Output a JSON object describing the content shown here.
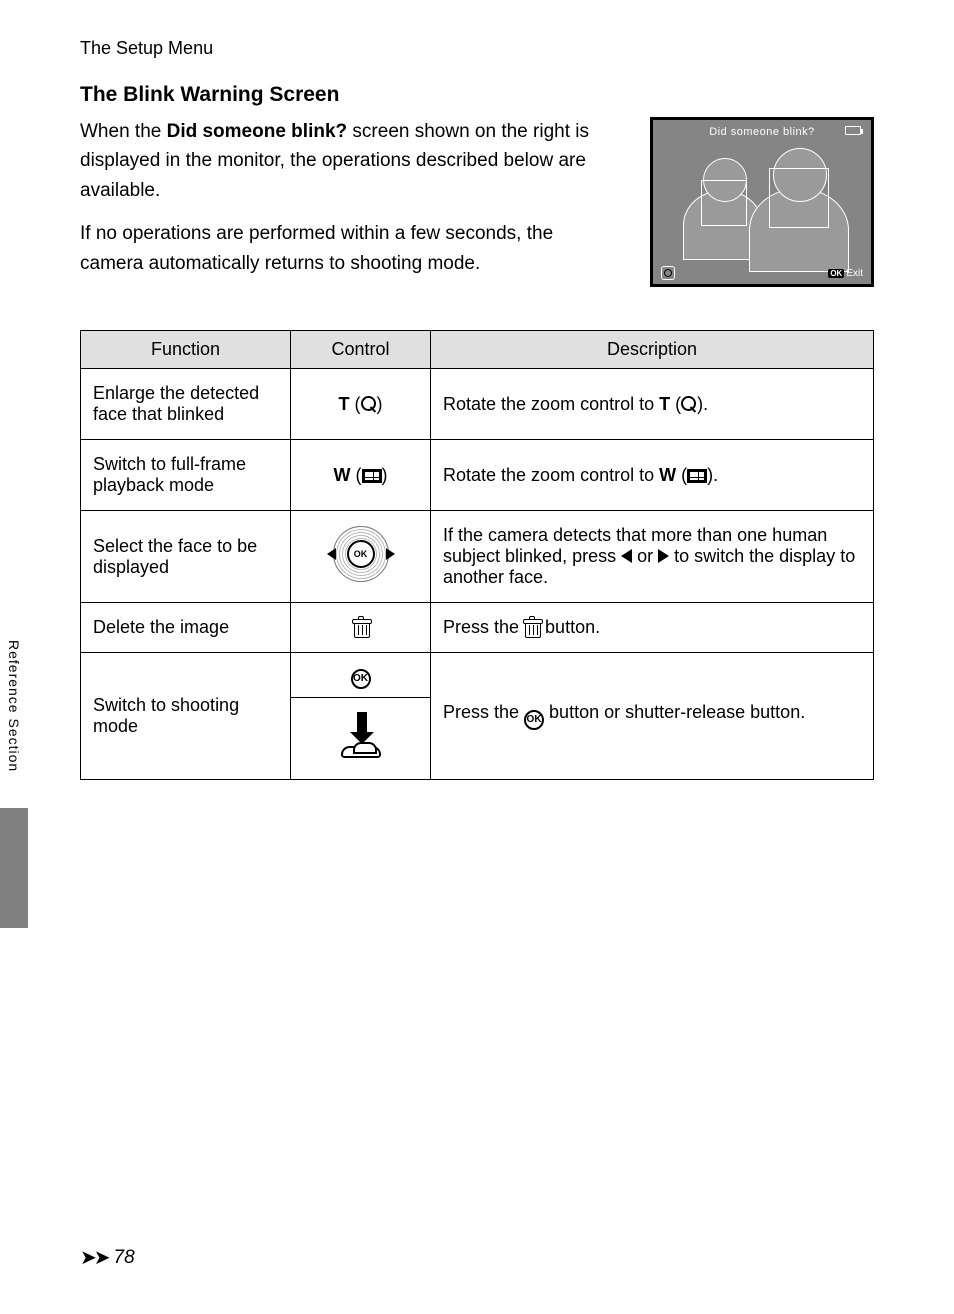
{
  "running_head": "The Setup Menu",
  "section_title": "The Blink Warning Screen",
  "intro": {
    "p1_a": "When the ",
    "p1_b": "Did someone blink?",
    "p1_c": " screen shown on the right is displayed in the monitor, the operations described below are available.",
    "p2": "If no operations are performed within a few seconds, the camera automatically returns to shooting mode."
  },
  "thumb": {
    "title": "Did someone blink?",
    "exit_label": "Exit",
    "ok_label": "OK"
  },
  "table": {
    "headers": {
      "function": "Function",
      "control": "Control",
      "description": "Description"
    },
    "rows": [
      {
        "function": "Enlarge the detected face that blinked",
        "control_type": "T-zoom",
        "control_prefix": "T",
        "desc_a": "Rotate the zoom control to ",
        "desc_b": "T",
        "desc_c": "."
      },
      {
        "function": "Switch to full-frame playback mode",
        "control_type": "W-zoom",
        "control_prefix": "W",
        "desc_a": "Rotate the zoom control to ",
        "desc_b": "W",
        "desc_c": "."
      },
      {
        "function": "Select the face to be displayed",
        "control_type": "multi-selector",
        "desc_a": "If the camera detects that more than one human subject blinked, press ",
        "desc_b": " or ",
        "desc_c": " to switch the display to another face."
      },
      {
        "function": "Delete the image",
        "control_type": "trash",
        "desc_a": "Press the ",
        "desc_b": " button."
      },
      {
        "function": "Switch to shooting mode",
        "control_type": "ok-shutter",
        "desc_a": "Press the ",
        "desc_b": " button or shutter-release button."
      }
    ]
  },
  "side_label": "Reference Section",
  "page_number": "78",
  "colors": {
    "header_bg": "#e0e0e0",
    "thumb_bg": "#858585",
    "side_tab": "#808080",
    "border": "#000000",
    "text": "#000000"
  }
}
